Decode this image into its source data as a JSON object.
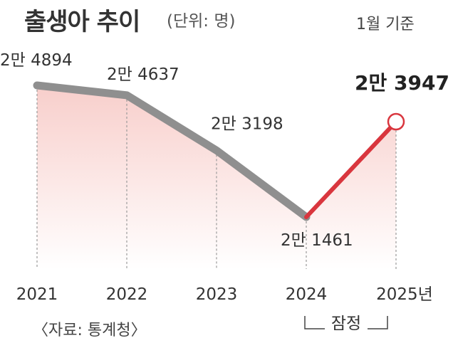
{
  "header": {
    "title": "출생아 추이",
    "unit": "(단위: 명)",
    "basis": "1월 기준"
  },
  "source": "〈자료: 통계청〉",
  "chart_data": {
    "type": "line",
    "title": "출생아 추이",
    "unit": "명",
    "x": [
      "2021",
      "2022",
      "2023",
      "2024",
      "2025년"
    ],
    "y": [
      24894,
      24637,
      23198,
      21461,
      23947
    ],
    "point_labels": [
      "2만 4894",
      "2만 4637",
      "2만 3198",
      "2만 1461",
      "2만 3947"
    ],
    "provisional_note": "잠정",
    "provisional_from_index": 3,
    "ylim": [
      20000,
      25500
    ],
    "colors": {
      "main_line": "#8f8f8f",
      "highlight_line": "#d9363e",
      "area": "#f2a6a0",
      "gridline": "#9a9a9a"
    }
  }
}
